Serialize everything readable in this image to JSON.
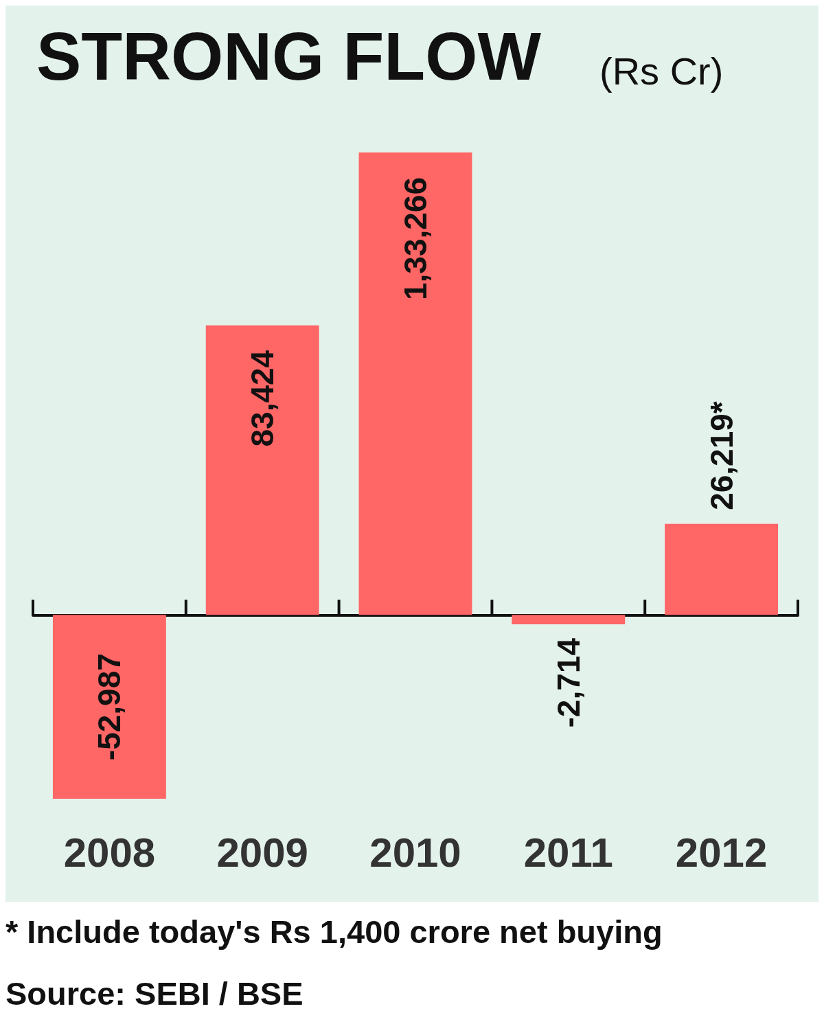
{
  "chart_data": {
    "type": "bar",
    "title": "STRONG FLOW",
    "subtitle": "(Rs Cr)",
    "categories": [
      "2008",
      "2009",
      "2010",
      "2011",
      "2012"
    ],
    "values": [
      -52987,
      83424,
      133266,
      -2714,
      26219
    ],
    "value_labels": [
      "-52,987",
      "83,424",
      "1,33,266",
      "-2,714",
      "26,219*"
    ],
    "color": "#ff6666",
    "annotations": [
      "* Include today's Rs 1,400 crore net buying",
      "Source: SEBI / BSE"
    ]
  }
}
